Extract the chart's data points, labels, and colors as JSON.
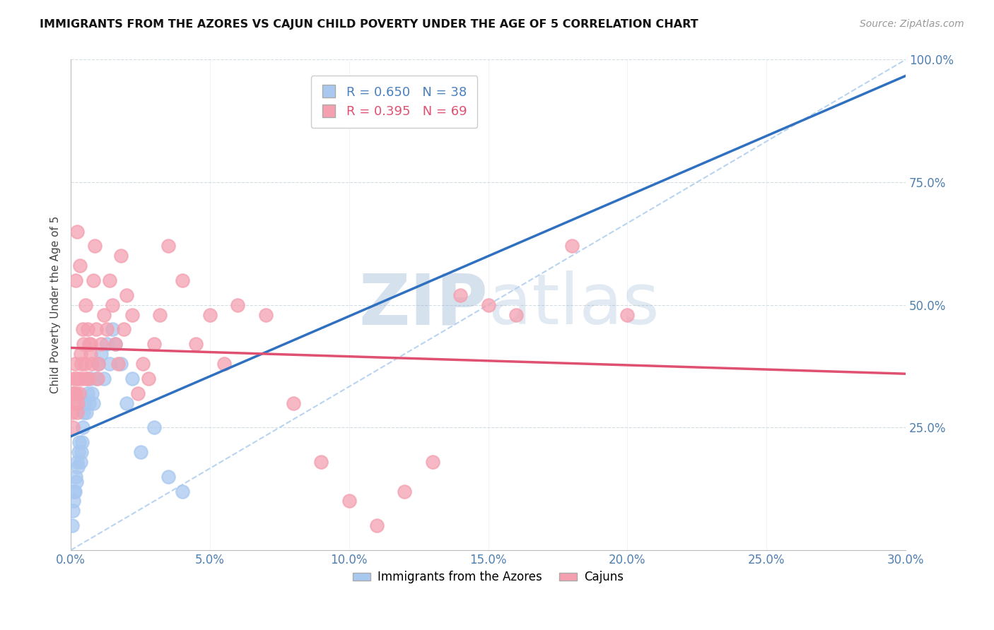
{
  "title": "IMMIGRANTS FROM THE AZORES VS CAJUN CHILD POVERTY UNDER THE AGE OF 5 CORRELATION CHART",
  "source": "Source: ZipAtlas.com",
  "xlabel_vals": [
    0.0,
    5.0,
    10.0,
    15.0,
    20.0,
    25.0,
    30.0
  ],
  "ylabel_vals": [
    0,
    25,
    50,
    75,
    100
  ],
  "ylabel_label": "Child Poverty Under the Age of 5",
  "xmin": 0.0,
  "xmax": 30.0,
  "ymin": 0,
  "ymax": 100,
  "blue_R": 0.65,
  "blue_N": 38,
  "pink_R": 0.395,
  "pink_N": 69,
  "blue_color": "#A8C8F0",
  "pink_color": "#F4A0B0",
  "trend_blue_color": "#3070C0",
  "trend_pink_color": "#E05070",
  "ref_line_color": "#B8D4F0",
  "watermark_color": "#C8D8F0",
  "blue_dots_x": [
    0.05,
    0.08,
    0.1,
    0.12,
    0.15,
    0.18,
    0.2,
    0.22,
    0.25,
    0.28,
    0.3,
    0.35,
    0.38,
    0.4,
    0.42,
    0.45,
    0.5,
    0.55,
    0.6,
    0.65,
    0.7,
    0.75,
    0.8,
    0.9,
    1.0,
    1.1,
    1.2,
    1.3,
    1.4,
    1.5,
    1.6,
    1.8,
    2.0,
    2.2,
    2.5,
    3.0,
    3.5,
    4.0
  ],
  "blue_dots_y": [
    5,
    8,
    10,
    12,
    12,
    15,
    14,
    18,
    17,
    20,
    22,
    18,
    20,
    22,
    25,
    28,
    30,
    28,
    32,
    30,
    35,
    32,
    30,
    35,
    38,
    40,
    35,
    42,
    38,
    45,
    42,
    38,
    30,
    35,
    20,
    25,
    15,
    12
  ],
  "pink_dots_x": [
    0.05,
    0.08,
    0.1,
    0.12,
    0.15,
    0.18,
    0.2,
    0.22,
    0.25,
    0.28,
    0.3,
    0.35,
    0.38,
    0.4,
    0.45,
    0.5,
    0.55,
    0.6,
    0.65,
    0.7,
    0.75,
    0.8,
    0.85,
    0.9,
    0.95,
    1.0,
    1.1,
    1.2,
    1.3,
    1.4,
    1.5,
    1.6,
    1.7,
    1.8,
    1.9,
    2.0,
    2.2,
    2.4,
    2.6,
    2.8,
    3.0,
    3.2,
    3.5,
    4.0,
    4.5,
    5.0,
    5.5,
    6.0,
    7.0,
    8.0,
    9.0,
    10.0,
    11.0,
    12.0,
    13.0,
    14.0,
    15.0,
    16.0,
    18.0,
    20.0,
    0.07,
    0.13,
    0.17,
    0.23,
    0.32,
    0.42,
    0.52,
    0.62,
    0.72
  ],
  "pink_dots_y": [
    28,
    32,
    35,
    30,
    38,
    32,
    35,
    28,
    30,
    35,
    32,
    40,
    38,
    35,
    42,
    38,
    35,
    45,
    42,
    40,
    38,
    55,
    62,
    45,
    35,
    38,
    42,
    48,
    45,
    55,
    50,
    42,
    38,
    60,
    45,
    52,
    48,
    32,
    38,
    35,
    42,
    48,
    62,
    55,
    42,
    48,
    38,
    50,
    48,
    30,
    18,
    10,
    5,
    12,
    18,
    52,
    50,
    48,
    62,
    48,
    25,
    32,
    55,
    65,
    58,
    45,
    50,
    35,
    42
  ]
}
